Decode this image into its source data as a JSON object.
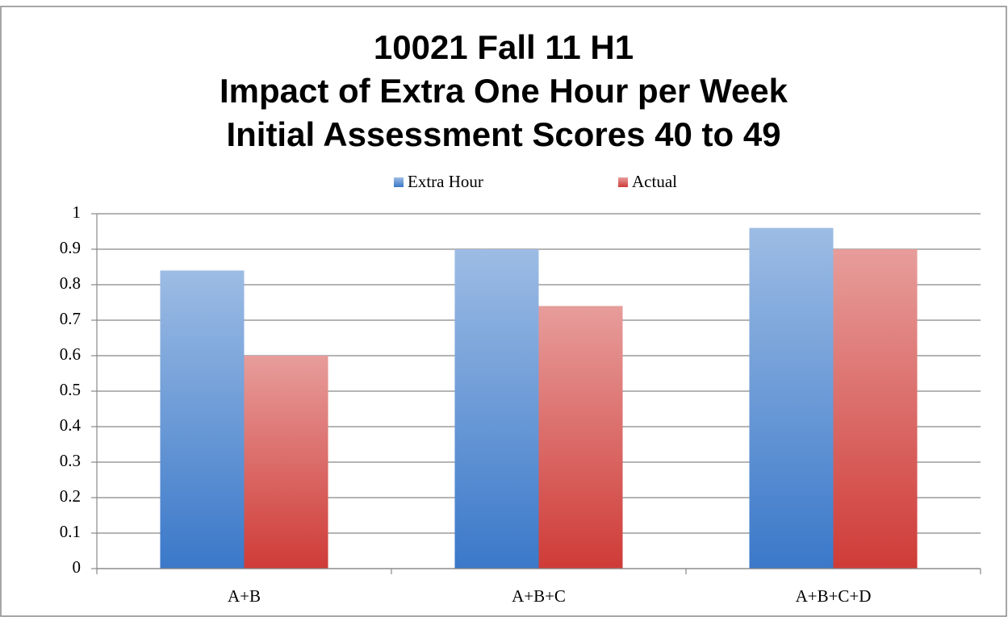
{
  "chart_data": {
    "type": "bar",
    "title": [
      "10021 Fall 11 H1",
      "Impact of Extra One Hour per Week",
      "Initial Assessment Scores 40 to 49"
    ],
    "categories": [
      "A+B",
      "A+B+C",
      "A+B+C+D"
    ],
    "series": [
      {
        "name": "Extra Hour",
        "color": "#3a78c9",
        "values": [
          0.84,
          0.9,
          0.96
        ]
      },
      {
        "name": "Actual",
        "color": "#cf3b37",
        "values": [
          0.6,
          0.74,
          0.9
        ]
      }
    ],
    "ylim": [
      0,
      1
    ],
    "yticks": [
      0,
      0.1,
      0.2,
      0.3,
      0.4,
      0.5,
      0.6,
      0.7,
      0.8,
      0.9,
      1
    ],
    "grid": true,
    "legend": "top"
  }
}
